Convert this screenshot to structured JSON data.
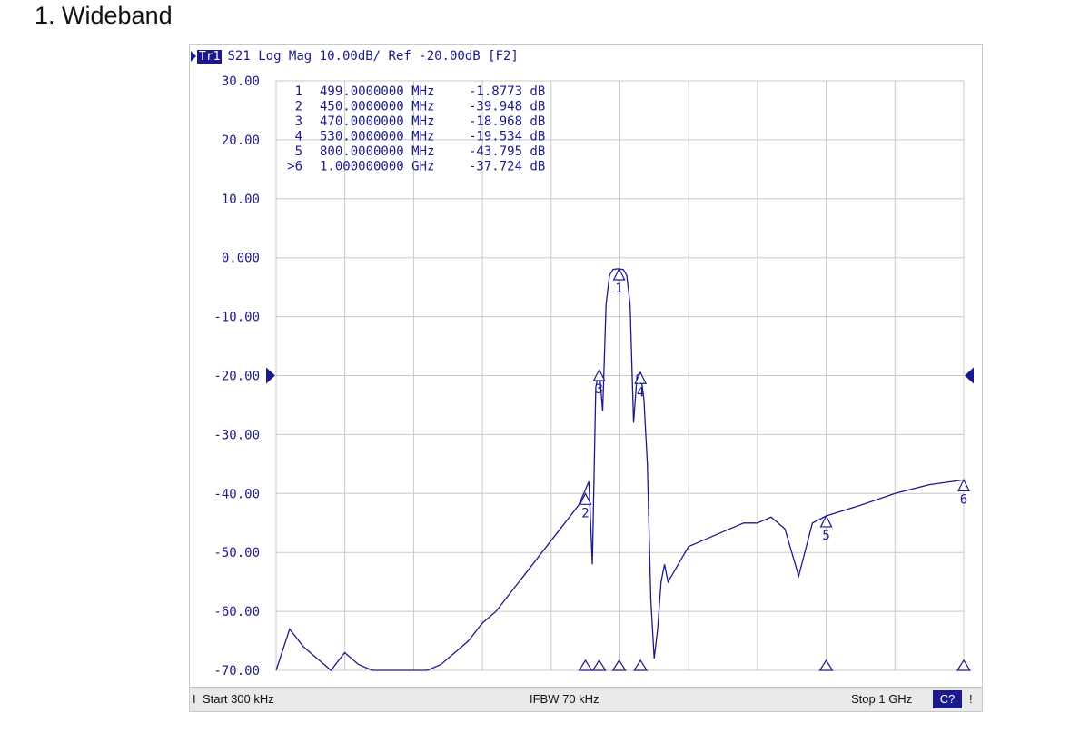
{
  "page_title": "1. Wideband",
  "trace": {
    "label": "Tr1",
    "parameter": "S21",
    "format": "Log Mag",
    "scale": "10.00dB/",
    "reference": "Ref -20.00dB",
    "channel": "[F2]"
  },
  "status": {
    "start": "Start 300 kHz",
    "ifbw": "IFBW 70 kHz",
    "stop": "Stop 1 GHz",
    "channel_badge": "C?",
    "left_marker": "I",
    "right_marker": "!"
  },
  "colors": {
    "trace": "#1a1a8c",
    "grid": "#c8c8c8",
    "text": "#1a1a8c"
  },
  "chart_data": {
    "type": "line",
    "title": "",
    "xlabel": "",
    "ylabel": "",
    "xlim_mhz": [
      0.3,
      1000
    ],
    "ylim": [
      -70,
      30
    ],
    "y_ticks": [
      "30.00",
      "20.00",
      "10.00",
      "0.000",
      "-10.00",
      "-20.00",
      "-30.00",
      "-40.00",
      "-50.00",
      "-60.00",
      "-70.00"
    ],
    "reference_level": -20,
    "grid": true,
    "marker_table": [
      {
        "id": "1",
        "freq": "499.0000000 MHz",
        "value": "-1.8773 dB"
      },
      {
        "id": "2",
        "freq": "450.0000000 MHz",
        "value": "-39.948 dB"
      },
      {
        "id": "3",
        "freq": "470.0000000 MHz",
        "value": "-18.968 dB"
      },
      {
        "id": "4",
        "freq": "530.0000000 MHz",
        "value": "-19.534 dB"
      },
      {
        "id": "5",
        "freq": "800.0000000 MHz",
        "value": "-43.795 dB"
      },
      {
        "id": ">6",
        "freq": "1.000000000 GHz",
        "value": "-37.724 dB"
      }
    ],
    "markers": [
      {
        "label": "1",
        "x": 499,
        "y": -1.9
      },
      {
        "label": "2",
        "x": 450,
        "y": -40.0
      },
      {
        "label": "3",
        "x": 470,
        "y": -19.0
      },
      {
        "label": "4",
        "x": 530,
        "y": -19.5
      },
      {
        "label": "5",
        "x": 800,
        "y": -43.8
      },
      {
        "label": "6",
        "x": 1000,
        "y": -37.7
      }
    ],
    "series": [
      {
        "x": [
          0.3,
          20,
          40,
          60,
          80,
          100,
          120,
          140,
          160,
          180,
          200,
          220,
          240,
          260,
          280,
          300,
          320,
          340,
          360,
          380,
          400,
          420,
          440,
          455,
          460,
          465,
          470,
          475,
          480,
          485,
          490,
          495,
          499,
          505,
          510,
          515,
          520,
          525,
          530,
          535,
          540,
          545,
          550,
          555,
          560,
          565,
          570,
          580,
          590,
          600,
          620,
          640,
          660,
          680,
          700,
          720,
          740,
          760,
          780,
          800,
          850,
          900,
          950,
          1000
        ],
        "y": [
          -70,
          -63,
          -66,
          -68,
          -70,
          -67,
          -69,
          -70,
          -70,
          -70,
          -70,
          -70,
          -69,
          -67,
          -65,
          -62,
          -60,
          -57,
          -54,
          -51,
          -48,
          -45,
          -42,
          -38,
          -52,
          -22,
          -19,
          -26,
          -8,
          -3,
          -2,
          -1.9,
          -1.9,
          -2,
          -3,
          -8,
          -28,
          -20,
          -19.5,
          -24,
          -35,
          -58,
          -68,
          -63,
          -55,
          -52,
          -55,
          -53,
          -51,
          -49,
          -48,
          -47,
          -46,
          -45,
          -45,
          -44,
          -46,
          -54,
          -45,
          -43.8,
          -42,
          -40,
          -38.5,
          -37.7
        ]
      }
    ]
  }
}
